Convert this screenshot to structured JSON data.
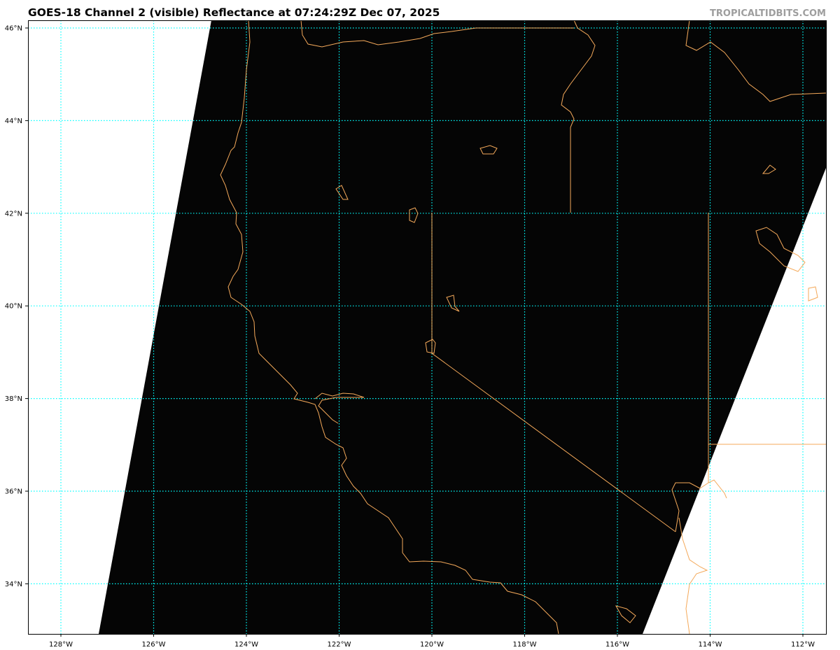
{
  "title": "GOES-18 Channel 2 (visible) Reflectance at 07:24:29Z Dec 07, 2025",
  "credit": "TROPICALTIDBITS.COM",
  "map": {
    "extent": {
      "lon": [
        -128.7,
        -111.5
      ],
      "lat": [
        32.9,
        46.2
      ]
    },
    "lat_ticks": [
      {
        "v": 46,
        "label": "46°N"
      },
      {
        "v": 44,
        "label": "44°N"
      },
      {
        "v": 42,
        "label": "42°N"
      },
      {
        "v": 40,
        "label": "40°N"
      },
      {
        "v": 38,
        "label": "38°N"
      },
      {
        "v": 36,
        "label": "36°N"
      },
      {
        "v": 34,
        "label": "34°N"
      }
    ],
    "lon_ticks": [
      {
        "v": -128,
        "label": "128°W"
      },
      {
        "v": -126,
        "label": "126°W"
      },
      {
        "v": -124,
        "label": "124°W"
      },
      {
        "v": -122,
        "label": "122°W"
      },
      {
        "v": -120,
        "label": "120°W"
      },
      {
        "v": -118,
        "label": "118°W"
      },
      {
        "v": -116,
        "label": "116°W"
      },
      {
        "v": -114,
        "label": "114°W"
      },
      {
        "v": -112,
        "label": "112°W"
      }
    ],
    "colors": {
      "gridlines": "#00ffff",
      "coastlines": "#f4a95a",
      "imagery": "#050505",
      "no_data": "#ffffff"
    }
  }
}
